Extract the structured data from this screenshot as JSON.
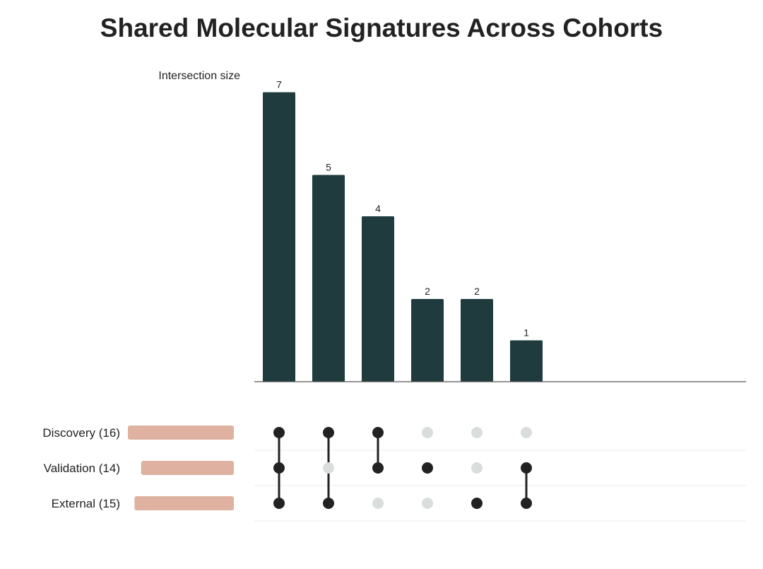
{
  "chart_data": {
    "type": "bar",
    "title": "Shared Molecular Signatures Across Cohorts",
    "ylabel": "Intersection size",
    "colors": {
      "bar": "#1f3b3d",
      "set_bar": "#deb1a0",
      "dot_active": "#222222",
      "dot_inactive": "#d9dedc",
      "axis": "#555555",
      "row_line": "#eeeeee"
    },
    "sets": [
      {
        "name": "Discovery",
        "size": 16,
        "label": "Discovery (16)"
      },
      {
        "name": "Validation",
        "size": 14,
        "label": "Validation (14)"
      },
      {
        "name": "External",
        "size": 15,
        "label": "External (15)"
      }
    ],
    "intersections": [
      {
        "members": [
          "Discovery",
          "Validation",
          "External"
        ],
        "value": 7,
        "label": "7"
      },
      {
        "members": [
          "Discovery",
          "External"
        ],
        "value": 5,
        "label": "5"
      },
      {
        "members": [
          "Discovery",
          "Validation"
        ],
        "value": 4,
        "label": "4"
      },
      {
        "members": [
          "Validation"
        ],
        "value": 2,
        "label": "2"
      },
      {
        "members": [
          "External"
        ],
        "value": 2,
        "label": "2"
      },
      {
        "members": [
          "Validation",
          "External"
        ],
        "value": 1,
        "label": "1"
      }
    ]
  }
}
